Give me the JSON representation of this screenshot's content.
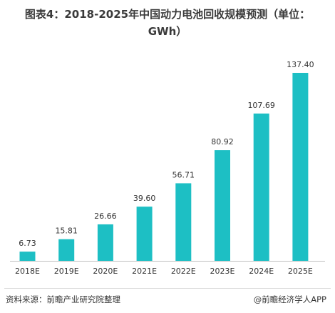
{
  "title_line1": "图表4：2018-2025年中国动力电池回收规模预测（单位：",
  "title_line2": "GWh）",
  "source": "资料来源：前瞻产业研究院整理",
  "brand": "@前瞻经济学人APP",
  "colors": {
    "bar": "#1dbfc4",
    "axis": "#bfbfbf",
    "text": "#333333"
  },
  "chart_data": {
    "type": "bar",
    "title": "图表4：2018-2025年中国动力电池回收规模预测（单位：GWh）",
    "categories": [
      "2018E",
      "2019E",
      "2020E",
      "2021E",
      "2022E",
      "2023E",
      "2024E",
      "2025E"
    ],
    "values": [
      6.73,
      15.81,
      26.66,
      39.6,
      56.71,
      80.92,
      107.69,
      137.4
    ],
    "labels": [
      "6.73",
      "15.81",
      "26.66",
      "39.60",
      "56.71",
      "80.92",
      "107.69",
      "137.40"
    ],
    "xlabel": "",
    "ylabel": "",
    "ylim": [
      0,
      140
    ],
    "grid": false,
    "legend": "none"
  }
}
